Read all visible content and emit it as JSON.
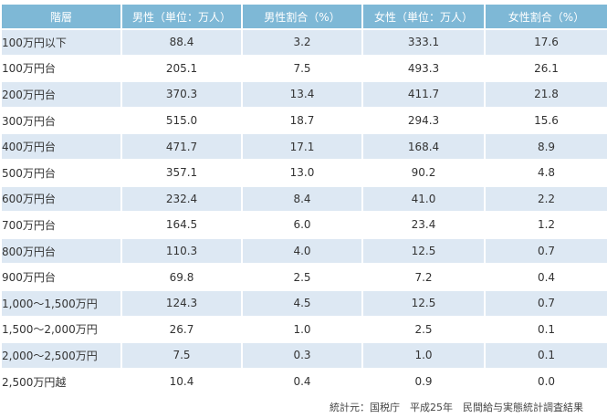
{
  "table": {
    "headers": [
      "階層",
      "男性（単位：万人）",
      "男性割合（%）",
      "女性（単位：万人）",
      "女性割合（%）"
    ],
    "rows": [
      [
        "100万円以下",
        "88.4",
        "3.2",
        "333.1",
        "17.6"
      ],
      [
        "100万円台",
        "205.1",
        "7.5",
        "493.3",
        "26.1"
      ],
      [
        "200万円台",
        "370.3",
        "13.4",
        "411.7",
        "21.8"
      ],
      [
        "300万円台",
        "515.0",
        "18.7",
        "294.3",
        "15.6"
      ],
      [
        "400万円台",
        "471.7",
        "17.1",
        "168.4",
        "8.9"
      ],
      [
        "500万円台",
        "357.1",
        "13.0",
        "90.2",
        "4.8"
      ],
      [
        "600万円台",
        "232.4",
        "8.4",
        "41.0",
        "2.2"
      ],
      [
        "700万円台",
        "164.5",
        "6.0",
        "23.4",
        "1.2"
      ],
      [
        "800万円台",
        "110.3",
        "4.0",
        "12.5",
        "0.7"
      ],
      [
        "900万円台",
        "69.8",
        "2.5",
        "7.2",
        "0.4"
      ],
      [
        "1,000～1,500万円",
        "124.3",
        "4.5",
        "12.5",
        "0.7"
      ],
      [
        "1,500～2,000万円",
        "26.7",
        "1.0",
        "2.5",
        "0.1"
      ],
      [
        "2,000～2,500万円",
        "7.5",
        "0.3",
        "1.0",
        "0.1"
      ],
      [
        "2,500万円越",
        "10.4",
        "0.4",
        "0.9",
        "0.0"
      ]
    ]
  },
  "source": "統計元：国税庁　平成25年　民間給与実態統計調査結果",
  "colors": {
    "header_bg": "#7eb8d6",
    "shaded_row_bg": "#dde8f3"
  }
}
